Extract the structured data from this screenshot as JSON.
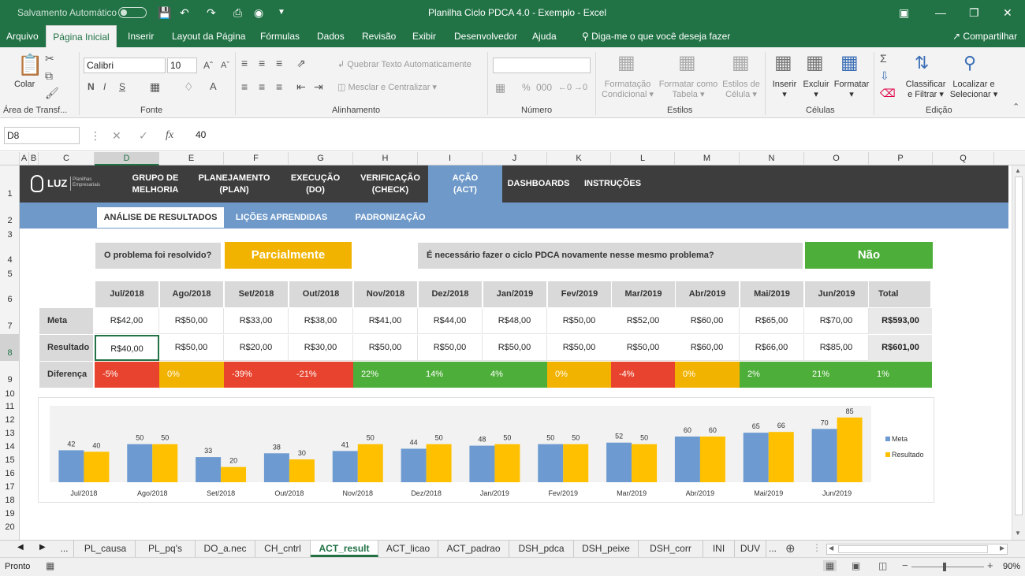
{
  "titlebar": {
    "autosave": "Salvamento Automático",
    "title": "Planilha Ciclo PDCA 4.0 - Exemplo  -  Excel",
    "icons": [
      "save-icon",
      "undo-icon",
      "redo-icon",
      "print-preview-icon",
      "camera-icon",
      "customize-icon"
    ]
  },
  "ribbon_tabs": [
    "Arquivo",
    "Página Inicial",
    "Inserir",
    "Layout da Página",
    "Fórmulas",
    "Dados",
    "Revisão",
    "Exibir",
    "Desenvolvedor",
    "Ajuda"
  ],
  "tell_me": "Diga-me o que você deseja fazer",
  "share": "Compartilhar",
  "ribbon": {
    "paste": "Colar",
    "clipboard": "Área de Transf...",
    "font_name": "Calibri",
    "font_size": "10",
    "bold": "N",
    "italic": "I",
    "underline": "S",
    "font_group": "Fonte",
    "wrap_text": "Quebrar Texto Automaticamente",
    "merge": "Mesclar e Centralizar",
    "align_group": "Alinhamento",
    "number_group": "Número",
    "cond_format": [
      "Formatação",
      "Condicional"
    ],
    "format_table": [
      "Formatar como",
      "Tabela"
    ],
    "cell_styles": [
      "Estilos de",
      "Célula"
    ],
    "styles_group": "Estilos",
    "insert": "Inserir",
    "delete": "Excluir",
    "format": "Formatar",
    "cells_group": "Células",
    "sort": [
      "Classificar",
      "e Filtrar"
    ],
    "find": [
      "Localizar e",
      "Selecionar"
    ],
    "edit_group": "Edição"
  },
  "formula_bar": {
    "name_box": "D8",
    "fx": "fx",
    "value": "40"
  },
  "columns": [
    "A",
    "B",
    "C",
    "D",
    "E",
    "F",
    "G",
    "H",
    "I",
    "J",
    "K",
    "L",
    "M",
    "N",
    "O",
    "P",
    "Q"
  ],
  "rows": [
    "1",
    "2",
    "3",
    "4",
    "5",
    "6",
    "7",
    "8",
    "9",
    "10",
    "11",
    "12",
    "13",
    "14",
    "15",
    "16",
    "17",
    "18",
    "19",
    "20"
  ],
  "nav": {
    "logo": "LUZ",
    "logo_sub": [
      "Planilhas",
      "Empresariais"
    ],
    "items": [
      [
        "GRUPO DE",
        "MELHORIA"
      ],
      [
        "PLANEJAMENTO",
        "(PLAN)"
      ],
      [
        "EXECUÇÃO",
        "(DO)"
      ],
      [
        "VERIFICAÇÃO",
        "(CHECK)"
      ],
      [
        "AÇÃO",
        "(ACT)"
      ],
      [
        "DASHBOARDS"
      ],
      [
        "INSTRUÇÕES"
      ]
    ]
  },
  "subnav": [
    "ANÁLISE DE RESULTADOS",
    "LIÇÕES APRENDIDAS",
    "PADRONIZAÇÃO"
  ],
  "question1": "O problema foi resolvido?",
  "answer1": "Parcialmente",
  "question2": "É necessário fazer o ciclo PDCA novamente nesse mesmo problema?",
  "answer2": "Não",
  "table": {
    "months": [
      "Jul/2018",
      "Ago/2018",
      "Set/2018",
      "Out/2018",
      "Nov/2018",
      "Dez/2018",
      "Jan/2019",
      "Fev/2019",
      "Mar/2019",
      "Abr/2019",
      "Mai/2019",
      "Jun/2019"
    ],
    "total_label": "Total",
    "meta_label": "Meta",
    "meta": [
      "R$42,00",
      "R$50,00",
      "R$33,00",
      "R$38,00",
      "R$41,00",
      "R$44,00",
      "R$48,00",
      "R$50,00",
      "R$52,00",
      "R$60,00",
      "R$65,00",
      "R$70,00"
    ],
    "meta_total": "R$593,00",
    "result_label": "Resultado",
    "result": [
      "R$40,00",
      "R$50,00",
      "R$20,00",
      "R$30,00",
      "R$50,00",
      "R$50,00",
      "R$50,00",
      "R$50,00",
      "R$50,00",
      "R$60,00",
      "R$66,00",
      "R$85,00"
    ],
    "result_total": "R$601,00",
    "diff_label": "Diferença",
    "diff": [
      "-5%",
      "0%",
      "-39%",
      "-21%",
      "22%",
      "14%",
      "4%",
      "0%",
      "-4%",
      "0%",
      "2%",
      "21%"
    ],
    "diff_total": "1%",
    "diff_status": [
      "red",
      "yel",
      "red",
      "red",
      "grn",
      "grn",
      "grn",
      "yel",
      "red",
      "yel",
      "grn",
      "grn"
    ],
    "diff_total_status": "grn"
  },
  "chart_data": {
    "type": "bar",
    "categories": [
      "Jul/2018",
      "Ago/2018",
      "Set/2018",
      "Out/2018",
      "Nov/2018",
      "Dez/2018",
      "Jan/2019",
      "Fev/2019",
      "Mar/2019",
      "Abr/2019",
      "Mai/2019",
      "Jun/2019"
    ],
    "series": [
      {
        "name": "Meta",
        "values": [
          42,
          50,
          33,
          38,
          41,
          44,
          48,
          50,
          52,
          60,
          65,
          70
        ],
        "color": "#6d9bd1"
      },
      {
        "name": "Resultado",
        "values": [
          40,
          50,
          20,
          30,
          50,
          50,
          50,
          50,
          50,
          60,
          66,
          85
        ],
        "color": "#ffc000"
      }
    ],
    "ylim": [
      0,
      90
    ],
    "grid": false,
    "legend": "right"
  },
  "sheet_tabs": [
    "PL_causa",
    "PL_pq's",
    "DO_a.nec",
    "CH_cntrl",
    "ACT_result",
    "ACT_licao",
    "ACT_padrao",
    "DSH_pdca",
    "DSH_peixe",
    "DSH_corr",
    "INI",
    "DUV"
  ],
  "active_sheet": "ACT_result",
  "status": {
    "ready": "Pronto",
    "zoom": "90%"
  },
  "colors": {
    "excel_green": "#217346",
    "nav_dark": "#3d3d3d",
    "nav_active": "#6e99c9",
    "partial": "#f2b300",
    "no": "#4eae3a"
  }
}
